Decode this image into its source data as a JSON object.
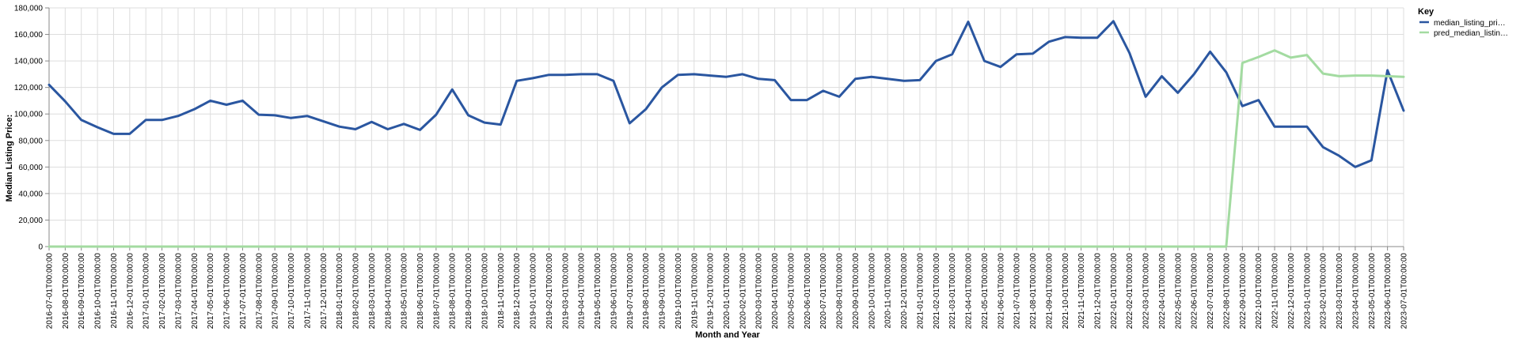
{
  "chart_data": {
    "type": "line",
    "xlabel": "Month and Year",
    "ylabel": "Median Listing Price:",
    "ylim": [
      0,
      180000
    ],
    "yticks": [
      "0",
      "20,000",
      "40,000",
      "60,000",
      "80,000",
      "100,000",
      "120,000",
      "140,000",
      "160,000",
      "180,000"
    ],
    "grid": true,
    "legend": {
      "title": "Key",
      "placement": "top-right",
      "entries": [
        {
          "label": "median_listing_pri…",
          "color": "#2a56a0"
        },
        {
          "label": "pred_median_listin…",
          "color": "#a3dba1"
        }
      ]
    },
    "x": [
      "2016-07-01T00:00:00",
      "2016-08-01T00:00:00",
      "2016-09-01T00:00:00",
      "2016-10-01T00:00:00",
      "2016-11-01T00:00:00",
      "2016-12-01T00:00:00",
      "2017-01-01T00:00:00",
      "2017-02-01T00:00:00",
      "2017-03-01T00:00:00",
      "2017-04-01T00:00:00",
      "2017-05-01T00:00:00",
      "2017-06-01T00:00:00",
      "2017-07-01T00:00:00",
      "2017-08-01T00:00:00",
      "2017-09-01T00:00:00",
      "2017-10-01T00:00:00",
      "2017-11-01T00:00:00",
      "2017-12-01T00:00:00",
      "2018-01-01T00:00:00",
      "2018-02-01T00:00:00",
      "2018-03-01T00:00:00",
      "2018-04-01T00:00:00",
      "2018-05-01T00:00:00",
      "2018-06-01T00:00:00",
      "2018-07-01T00:00:00",
      "2018-08-01T00:00:00",
      "2018-09-01T00:00:00",
      "2018-10-01T00:00:00",
      "2018-11-01T00:00:00",
      "2018-12-01T00:00:00",
      "2019-01-01T00:00:00",
      "2019-02-01T00:00:00",
      "2019-03-01T00:00:00",
      "2019-04-01T00:00:00",
      "2019-05-01T00:00:00",
      "2019-06-01T00:00:00",
      "2019-07-01T00:00:00",
      "2019-08-01T00:00:00",
      "2019-09-01T00:00:00",
      "2019-10-01T00:00:00",
      "2019-11-01T00:00:00",
      "2019-12-01T00:00:00",
      "2020-01-01T00:00:00",
      "2020-02-01T00:00:00",
      "2020-03-01T00:00:00",
      "2020-04-01T00:00:00",
      "2020-05-01T00:00:00",
      "2020-06-01T00:00:00",
      "2020-07-01T00:00:00",
      "2020-08-01T00:00:00",
      "2020-09-01T00:00:00",
      "2020-10-01T00:00:00",
      "2020-11-01T00:00:00",
      "2020-12-01T00:00:00",
      "2021-01-01T00:00:00",
      "2021-02-01T00:00:00",
      "2021-03-01T00:00:00",
      "2021-04-01T00:00:00",
      "2021-05-01T00:00:00",
      "2021-06-01T00:00:00",
      "2021-07-01T00:00:00",
      "2021-08-01T00:00:00",
      "2021-09-01T00:00:00",
      "2021-10-01T00:00:00",
      "2021-11-01T00:00:00",
      "2021-12-01T00:00:00",
      "2022-01-01T00:00:00",
      "2022-02-01T00:00:00",
      "2022-03-01T00:00:00",
      "2022-04-01T00:00:00",
      "2022-05-01T00:00:00",
      "2022-06-01T00:00:00",
      "2022-07-01T00:00:00",
      "2022-08-01T00:00:00",
      "2022-09-01T00:00:00",
      "2022-10-01T00:00:00",
      "2022-11-01T00:00:00",
      "2022-12-01T00:00:00",
      "2023-01-01T00:00:00",
      "2023-02-01T00:00:00",
      "2023-03-01T00:00:00",
      "2023-04-01T00:00:00",
      "2023-05-01T00:00:00",
      "2023-06-01T00:00:00",
      "2023-07-01T00:00:00"
    ],
    "series": [
      {
        "name": "median_listing_pri…",
        "color": "#2a56a0",
        "values": [
          122000,
          109500,
          95500,
          90000,
          85000,
          85000,
          95500,
          95500,
          98500,
          103500,
          110000,
          107000,
          110000,
          99500,
          99000,
          97000,
          98500,
          94500,
          90500,
          88500,
          94000,
          88500,
          92500,
          88000,
          99500,
          118500,
          99000,
          93500,
          92000,
          125000,
          127000,
          129500,
          129500,
          130000,
          130000,
          125000,
          93000,
          103500,
          120000,
          129500,
          130000,
          129000,
          128000,
          130000,
          126500,
          125500,
          110500,
          110500,
          117500,
          113000,
          126500,
          128000,
          126500,
          125000,
          125500,
          140000,
          145000,
          169500,
          140000,
          135500,
          145000,
          145500,
          154500,
          158000,
          157500,
          157500,
          170000,
          146000,
          113000,
          128500,
          116000,
          130000,
          147000,
          131500,
          106000,
          110500,
          90500,
          90500,
          90500,
          75000,
          68500,
          60000,
          65000,
          133000,
          102500
        ]
      },
      {
        "name": "pred_median_listin…",
        "color": "#a3dba1",
        "values": [
          0,
          0,
          0,
          0,
          0,
          0,
          0,
          0,
          0,
          0,
          0,
          0,
          0,
          0,
          0,
          0,
          0,
          0,
          0,
          0,
          0,
          0,
          0,
          0,
          0,
          0,
          0,
          0,
          0,
          0,
          0,
          0,
          0,
          0,
          0,
          0,
          0,
          0,
          0,
          0,
          0,
          0,
          0,
          0,
          0,
          0,
          0,
          0,
          0,
          0,
          0,
          0,
          0,
          0,
          0,
          0,
          0,
          0,
          0,
          0,
          0,
          0,
          0,
          0,
          0,
          0,
          0,
          0,
          0,
          0,
          0,
          0,
          0,
          0,
          138500,
          143000,
          148000,
          142500,
          144500,
          130500,
          128500,
          129000,
          129000,
          128500,
          128000
        ]
      }
    ]
  }
}
